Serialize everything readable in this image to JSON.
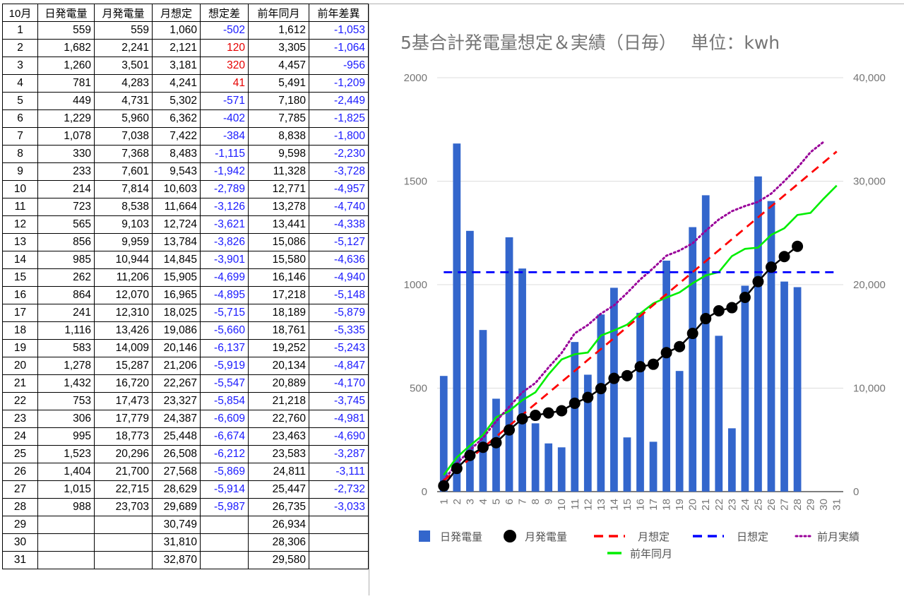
{
  "table": {
    "headers": [
      "10月",
      "日発電量",
      "月発電量",
      "月想定",
      "想定差",
      "前年同月",
      "前年差異"
    ],
    "rows": [
      [
        "1",
        "559",
        "559",
        "1,060",
        "-502",
        "1,612",
        "-1,053"
      ],
      [
        "2",
        "1,682",
        "2,241",
        "2,121",
        "120",
        "3,305",
        "-1,064"
      ],
      [
        "3",
        "1,260",
        "3,501",
        "3,181",
        "320",
        "4,457",
        "-956"
      ],
      [
        "4",
        "781",
        "4,283",
        "4,241",
        "41",
        "5,491",
        "-1,209"
      ],
      [
        "5",
        "449",
        "4,731",
        "5,302",
        "-571",
        "7,180",
        "-2,449"
      ],
      [
        "6",
        "1,229",
        "5,960",
        "6,362",
        "-402",
        "7,785",
        "-1,825"
      ],
      [
        "7",
        "1,078",
        "7,038",
        "7,422",
        "-384",
        "8,838",
        "-1,800"
      ],
      [
        "8",
        "330",
        "7,368",
        "8,483",
        "-1,115",
        "9,598",
        "-2,230"
      ],
      [
        "9",
        "233",
        "7,601",
        "9,543",
        "-1,942",
        "11,328",
        "-3,728"
      ],
      [
        "10",
        "214",
        "7,814",
        "10,603",
        "-2,789",
        "12,771",
        "-4,957"
      ],
      [
        "11",
        "723",
        "8,538",
        "11,664",
        "-3,126",
        "13,278",
        "-4,740"
      ],
      [
        "12",
        "565",
        "9,103",
        "12,724",
        "-3,621",
        "13,441",
        "-4,338"
      ],
      [
        "13",
        "856",
        "9,959",
        "13,784",
        "-3,826",
        "15,086",
        "-5,127"
      ],
      [
        "14",
        "985",
        "10,944",
        "14,845",
        "-3,901",
        "15,580",
        "-4,636"
      ],
      [
        "15",
        "262",
        "11,206",
        "15,905",
        "-4,699",
        "16,146",
        "-4,940"
      ],
      [
        "16",
        "864",
        "12,070",
        "16,965",
        "-4,895",
        "17,218",
        "-5,148"
      ],
      [
        "17",
        "241",
        "12,310",
        "18,025",
        "-5,715",
        "18,189",
        "-5,879"
      ],
      [
        "18",
        "1,116",
        "13,426",
        "19,086",
        "-5,660",
        "18,761",
        "-5,335"
      ],
      [
        "19",
        "583",
        "14,009",
        "20,146",
        "-6,137",
        "19,252",
        "-5,243"
      ],
      [
        "20",
        "1,278",
        "15,287",
        "21,206",
        "-5,919",
        "20,134",
        "-4,847"
      ],
      [
        "21",
        "1,432",
        "16,720",
        "22,267",
        "-5,547",
        "20,889",
        "-4,170"
      ],
      [
        "22",
        "753",
        "17,473",
        "23,327",
        "-5,854",
        "21,218",
        "-3,745"
      ],
      [
        "23",
        "306",
        "17,779",
        "24,387",
        "-6,609",
        "22,760",
        "-4,981"
      ],
      [
        "24",
        "995",
        "18,773",
        "25,448",
        "-6,674",
        "23,463",
        "-4,690"
      ],
      [
        "25",
        "1,523",
        "20,296",
        "26,508",
        "-6,212",
        "23,583",
        "-3,287"
      ],
      [
        "26",
        "1,404",
        "21,700",
        "27,568",
        "-5,869",
        "24,811",
        "-3,111"
      ],
      [
        "27",
        "1,015",
        "22,715",
        "28,629",
        "-5,914",
        "25,447",
        "-2,732"
      ],
      [
        "28",
        "988",
        "23,703",
        "29,689",
        "-5,987",
        "26,735",
        "-3,033"
      ],
      [
        "29",
        "",
        "",
        "30,749",
        "",
        "26,934",
        ""
      ],
      [
        "30",
        "",
        "",
        "31,810",
        "",
        "28,306",
        ""
      ],
      [
        "31",
        "",
        "",
        "32,870",
        "",
        "29,580",
        ""
      ]
    ]
  },
  "chart_data": {
    "type": "bar",
    "title": "5基合計発電量想定＆実績（日毎）　 単位：kwh",
    "x": [
      1,
      2,
      3,
      4,
      5,
      6,
      7,
      8,
      9,
      10,
      11,
      12,
      13,
      14,
      15,
      16,
      17,
      18,
      19,
      20,
      21,
      22,
      23,
      24,
      25,
      26,
      27,
      28,
      29,
      30,
      31
    ],
    "y_left_ticks": [
      "0",
      "500",
      "1000",
      "1500",
      "2000"
    ],
    "y_left_range": [
      0,
      2000
    ],
    "y_right_ticks": [
      "0",
      "10,000",
      "20,000",
      "30,000",
      "40,000"
    ],
    "y_right_range": [
      0,
      40000
    ],
    "grid": true,
    "legend_position": "bottom",
    "series": [
      {
        "name": "日発電量",
        "kind": "bar",
        "axis": "left",
        "color": "#3366cc",
        "values": [
          559,
          1682,
          1260,
          781,
          449,
          1229,
          1078,
          330,
          233,
          214,
          723,
          565,
          856,
          985,
          262,
          864,
          241,
          1116,
          583,
          1278,
          1432,
          753,
          306,
          995,
          1523,
          1404,
          1015,
          988,
          null,
          null,
          null
        ]
      },
      {
        "name": "月発電量",
        "kind": "line-markers",
        "axis": "right",
        "color": "#000000",
        "values": [
          559,
          2241,
          3501,
          4283,
          4731,
          5960,
          7038,
          7368,
          7601,
          7814,
          8538,
          9103,
          9959,
          10944,
          11206,
          12070,
          12310,
          13426,
          14009,
          15287,
          16720,
          17473,
          17779,
          18773,
          20296,
          21700,
          22715,
          23703,
          null,
          null,
          null
        ]
      },
      {
        "name": "月想定",
        "kind": "dashed-line",
        "axis": "right",
        "color": "#ff0000",
        "values": [
          1060,
          2121,
          3181,
          4241,
          5302,
          6362,
          7422,
          8483,
          9543,
          10603,
          11664,
          12724,
          13784,
          14845,
          15905,
          16965,
          18025,
          19086,
          20146,
          21206,
          22267,
          23327,
          24387,
          25448,
          26508,
          27568,
          28629,
          29689,
          30749,
          31810,
          32870
        ]
      },
      {
        "name": "日想定",
        "kind": "dashed-line",
        "axis": "left",
        "color": "#0000ff",
        "values": [
          1060,
          1060,
          1060,
          1060,
          1060,
          1060,
          1060,
          1060,
          1060,
          1060,
          1060,
          1060,
          1060,
          1060,
          1060,
          1060,
          1060,
          1060,
          1060,
          1060,
          1060,
          1060,
          1060,
          1060,
          1060,
          1060,
          1060,
          1060,
          1060,
          1060,
          1060
        ]
      },
      {
        "name": "前月実績",
        "kind": "dotted-line",
        "axis": "right",
        "color": "#990099",
        "values": [
          1100,
          2700,
          4000,
          5200,
          6800,
          8200,
          9600,
          10500,
          12000,
          13400,
          15300,
          16100,
          17200,
          18000,
          19200,
          20500,
          21600,
          22800,
          23300,
          24000,
          25200,
          26300,
          27100,
          27600,
          28000,
          28800,
          30000,
          31300,
          32800,
          33800,
          null
        ]
      },
      {
        "name": "前年同月",
        "kind": "line",
        "axis": "right",
        "color": "#00ee00",
        "values": [
          1612,
          3305,
          4457,
          5491,
          7180,
          7785,
          8838,
          9598,
          11328,
          12771,
          13278,
          13441,
          15086,
          15580,
          16146,
          17218,
          18189,
          18761,
          19252,
          20134,
          20889,
          21218,
          22760,
          23463,
          23583,
          24811,
          25447,
          26735,
          26934,
          28306,
          29580
        ]
      }
    ]
  }
}
